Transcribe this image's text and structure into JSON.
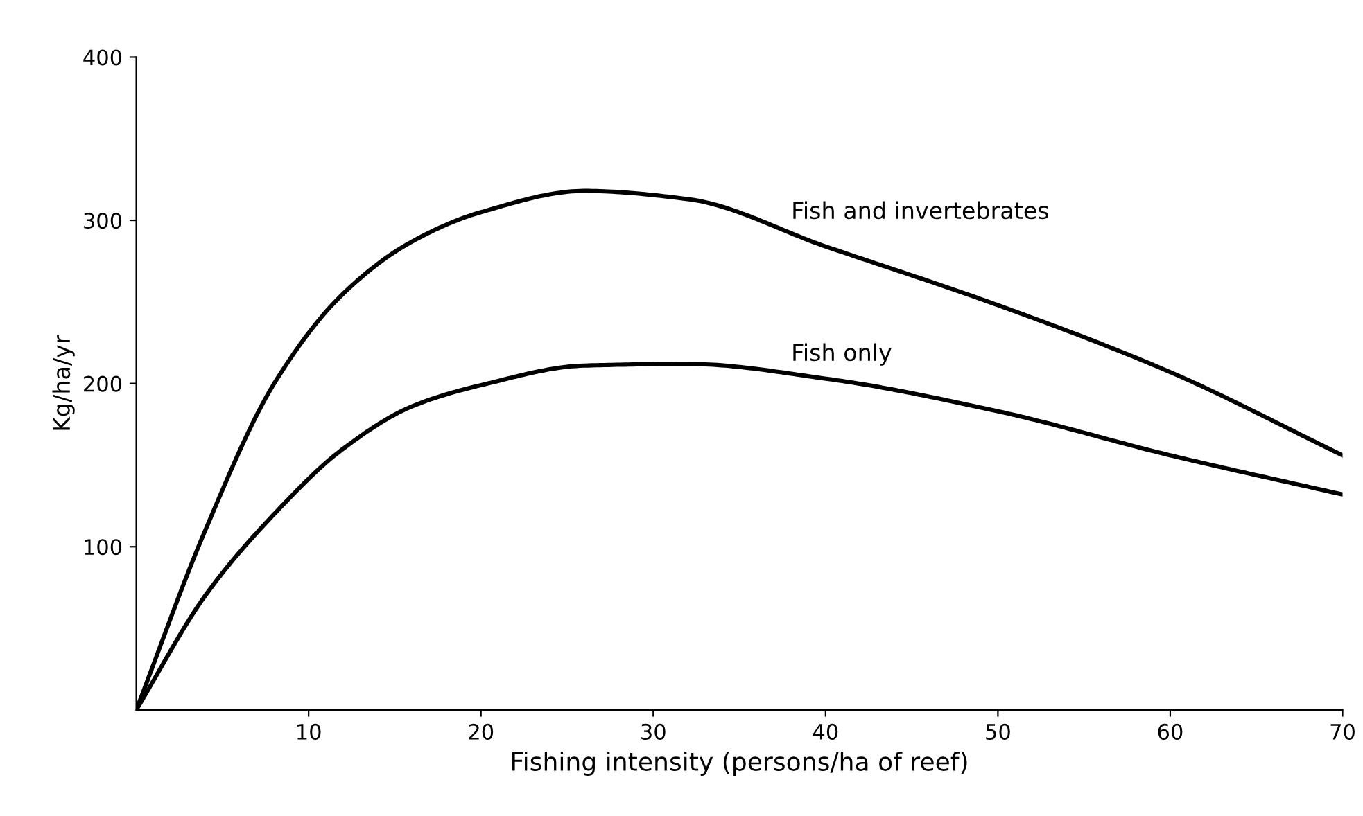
{
  "chart_data": {
    "type": "line",
    "xlabel": "Fishing intensity (persons/ha of reef)",
    "ylabel": "Kg/ha/yr",
    "xlim": [
      0,
      70
    ],
    "xticks": [
      10,
      20,
      30,
      40,
      50,
      60,
      70
    ],
    "ylim": [
      0,
      400
    ],
    "yticks": [
      100,
      200,
      300,
      400
    ],
    "x": [
      0,
      4,
      8,
      12,
      16,
      20,
      26,
      32,
      40,
      50,
      60,
      70
    ],
    "series": [
      {
        "name": "Fish and invertebrates",
        "color": "#000000",
        "values": [
          0,
          110,
          200,
          255,
          287,
          305,
          318,
          313,
          284,
          248,
          207,
          156
        ]
      },
      {
        "name": "Fish only",
        "color": "#000000",
        "values": [
          0,
          70,
          120,
          160,
          186,
          199,
          211,
          212,
          203,
          183,
          156,
          132
        ]
      }
    ],
    "grid": false,
    "legend": false,
    "marker": "none",
    "line_style": "solid"
  }
}
